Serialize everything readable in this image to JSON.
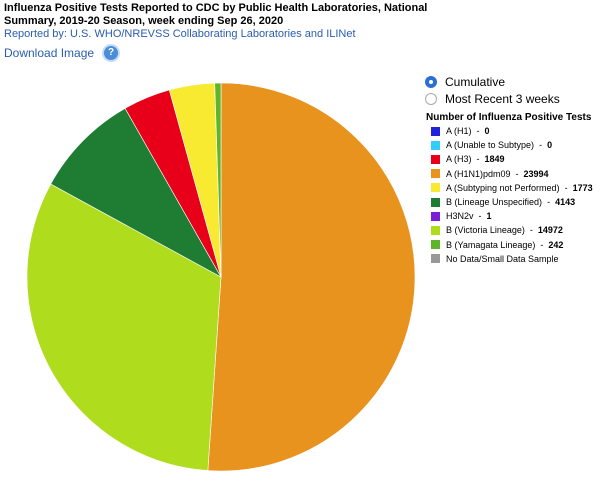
{
  "header": {
    "title": "Influenza Positive Tests Reported to CDC by Public Health Laboratories, National Summary, 2019-20 Season, week ending Sep 26, 2020",
    "subtitle": "Reported by: U.S. WHO/NREVSS Collaborating Laboratories and ILINet",
    "download_label": "Download Image",
    "help_glyph": "?"
  },
  "options": {
    "cumulative_label": "Cumulative",
    "recent_label": "Most Recent 3 weeks",
    "selected": "cumulative"
  },
  "legend": {
    "title": "Number of Influenza Positive Tests"
  },
  "chart_data": {
    "type": "pie",
    "title": "Number of Influenza Positive Tests",
    "legend_position": "right",
    "slices": [
      {
        "name": "A (H1)",
        "value": 0,
        "value_label": "0",
        "color": "#2222dd"
      },
      {
        "name": "A (Unable to Subtype)",
        "value": 0,
        "value_label": "0",
        "color": "#33ccff"
      },
      {
        "name": "A (H3)",
        "value": 1849,
        "value_label": "1849",
        "color": "#e8001a"
      },
      {
        "name": "A (H1N1)pdm09",
        "value": 23994,
        "value_label": "23994",
        "color": "#e8931e"
      },
      {
        "name": "A (Subtyping not Performed)",
        "value": 1773,
        "value_label": "1773",
        "color": "#f8ea30"
      },
      {
        "name": "B (Lineage Unspecified)",
        "value": 4143,
        "value_label": "4143",
        "color": "#1f7d33"
      },
      {
        "name": "H3N2v",
        "value": 1,
        "value_label": "1",
        "color": "#7a1fd6"
      },
      {
        "name": "B (Victoria Lineage)",
        "value": 14972,
        "value_label": "14972",
        "color": "#b0dc1e"
      },
      {
        "name": "B (Yamagata Lineage)",
        "value": 242,
        "value_label": "242",
        "color": "#5fb52a"
      },
      {
        "name": "No Data/Small Data Sample",
        "value": null,
        "value_label": "",
        "color": "#999999"
      }
    ]
  }
}
